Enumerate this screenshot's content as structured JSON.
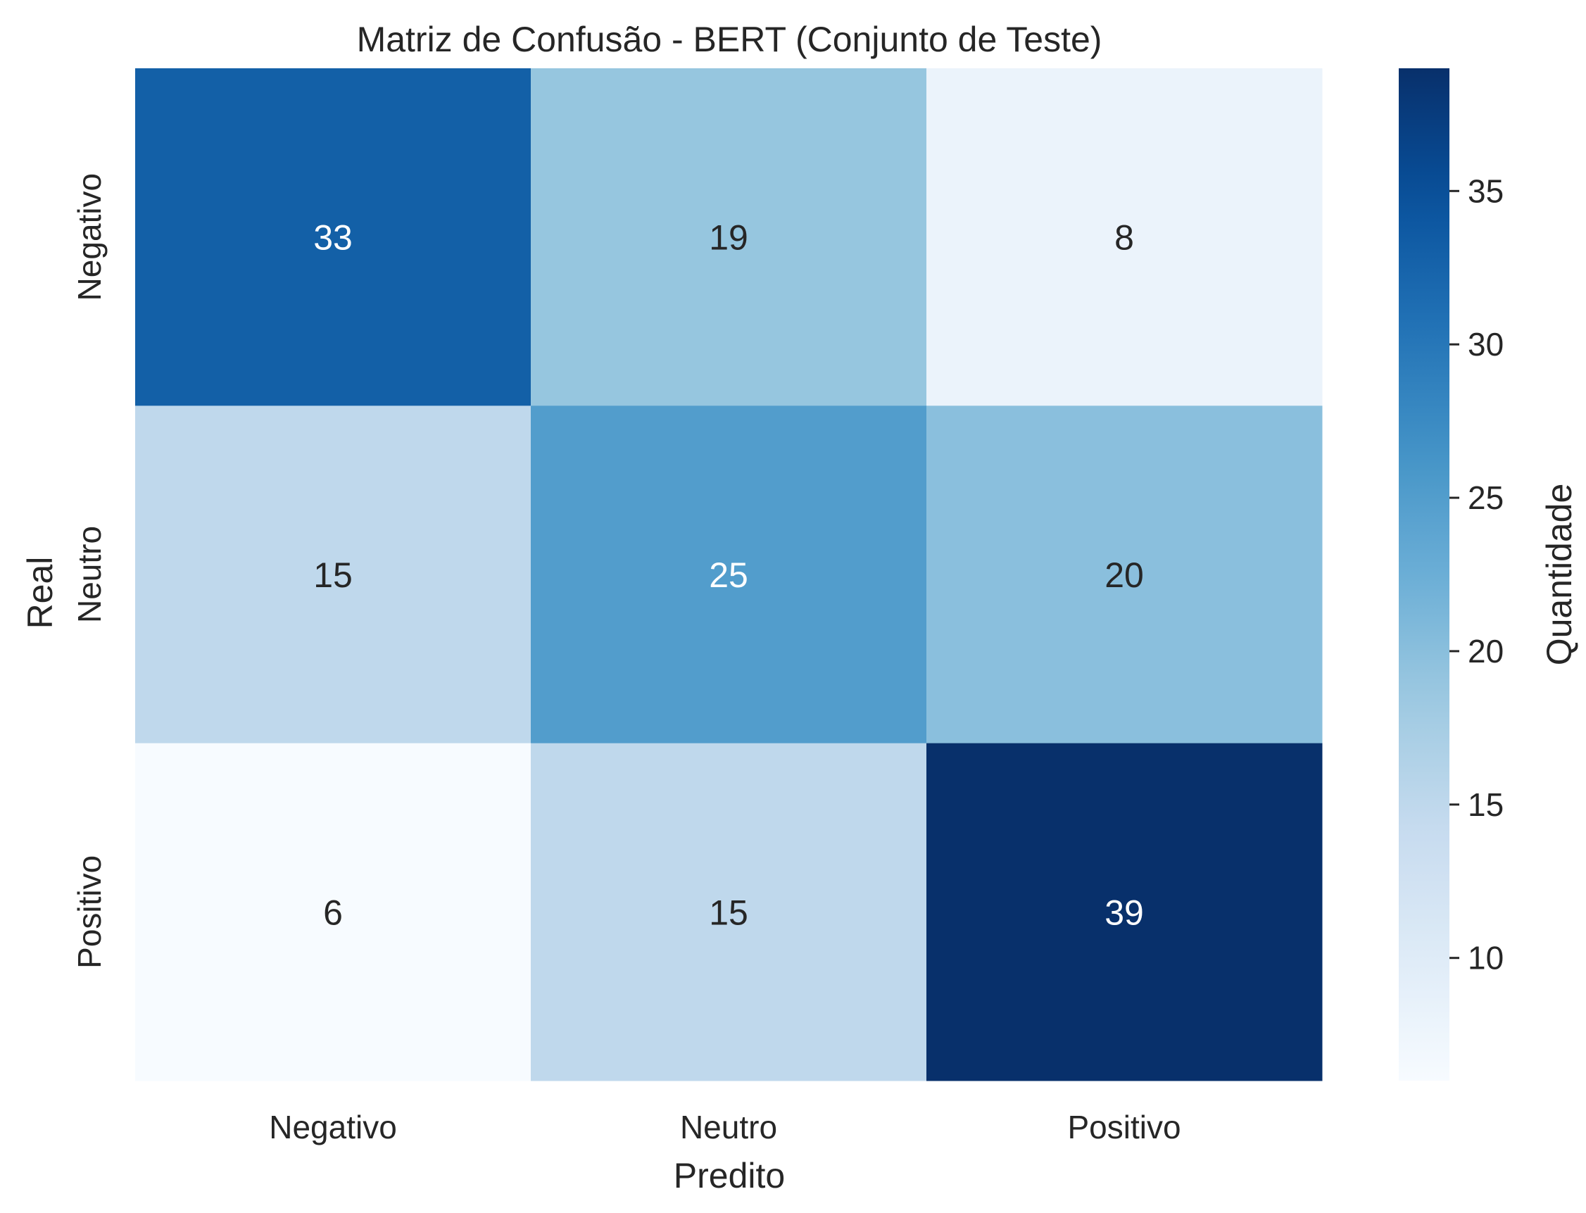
{
  "chart_data": {
    "type": "heatmap",
    "title": "Matriz de Confusão - BERT (Conjunto de Teste)",
    "xlabel": "Predito",
    "ylabel": "Real",
    "x_categories": [
      "Negativo",
      "Neutro",
      "Positivo"
    ],
    "y_categories": [
      "Negativo",
      "Neutro",
      "Positivo"
    ],
    "values": [
      [
        33,
        19,
        8
      ],
      [
        15,
        25,
        20
      ],
      [
        6,
        15,
        39
      ]
    ],
    "colormap": "Blues",
    "colorbar": {
      "label": "Quantidade",
      "min": 6,
      "max": 39,
      "ticks": [
        10,
        15,
        20,
        25,
        30,
        35
      ]
    },
    "annotations": true,
    "grid": false
  }
}
